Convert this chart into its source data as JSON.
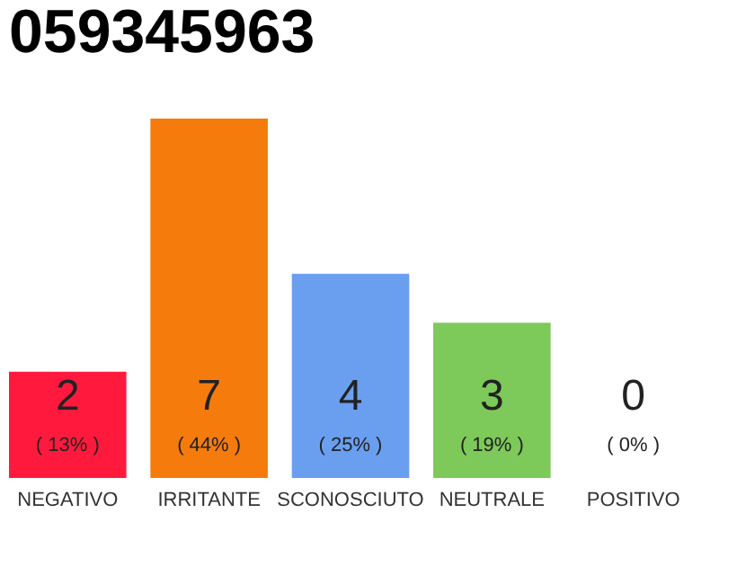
{
  "chart_data": {
    "type": "bar",
    "title": "059345963",
    "categories": [
      "NEGATIVO",
      "IRRITANTE",
      "SCONOSCIUTO",
      "NEUTRALE",
      "POSITIVO"
    ],
    "values": [
      13,
      44,
      25,
      19,
      0
    ],
    "colors": [
      "#ff1a3d",
      "#f57c0c",
      "#6a9ff0",
      "#7dc95a",
      "#eeeeee"
    ],
    "value_labels": [
      "( 13% )",
      "( 44% )",
      "( 25% )",
      "( 19% )",
      "( 0% )"
    ],
    "annotations": [
      "2",
      "7",
      "4",
      "3",
      "0"
    ],
    "grid": false
  }
}
